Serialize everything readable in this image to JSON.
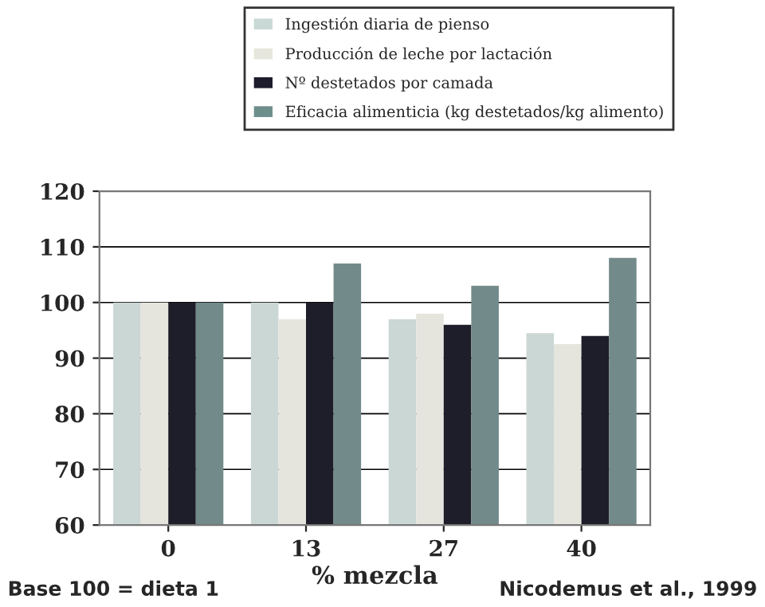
{
  "chart_data": {
    "type": "bar",
    "xlabel": "% mezcla",
    "categories": [
      "0",
      "13",
      "27",
      "40"
    ],
    "series": [
      {
        "name": "Ingestión diaria de pienso",
        "color": "#c9d9d6",
        "values": [
          100,
          100,
          97,
          94.5
        ]
      },
      {
        "name": "Producción de leche por lactación",
        "color": "#e6e6dc",
        "values": [
          100,
          97,
          98,
          92.5
        ]
      },
      {
        "name": "Nº destetados por camada",
        "color": "#1c1c2c",
        "values": [
          100,
          100,
          96,
          94
        ]
      },
      {
        "name": "Eficacia alimenticia (kg destetados/kg alimento)",
        "color": "#6e8e8c",
        "values": [
          100,
          107,
          103,
          108
        ]
      }
    ],
    "ylim": [
      60,
      120
    ],
    "yticks": [
      60,
      70,
      80,
      90,
      100,
      110,
      120
    ],
    "grid": "y",
    "legend": "top",
    "annotations": [
      "Base 100 = dieta 1",
      "Nicodemus et al., 1999"
    ]
  }
}
